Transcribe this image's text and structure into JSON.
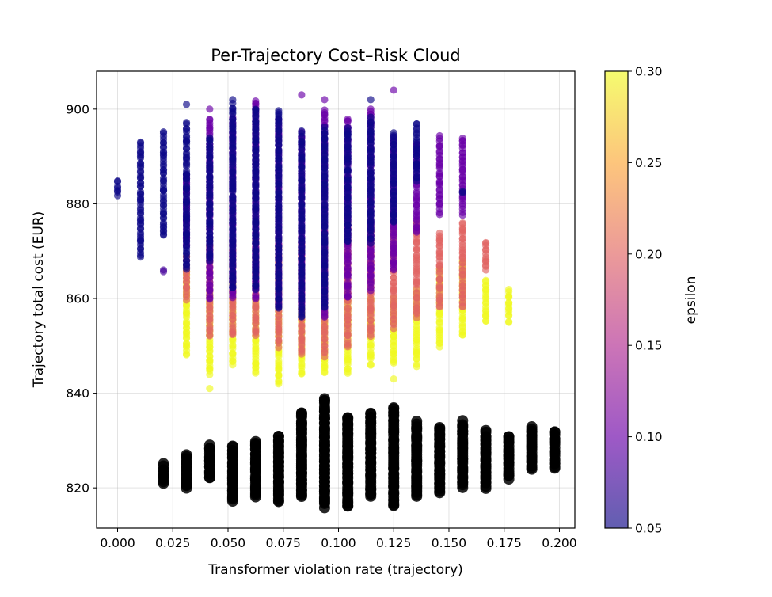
{
  "chart_data": {
    "type": "scatter",
    "title": "Per-Trajectory Cost–Risk Cloud",
    "xlabel": "Transformer violation rate (trajectory)",
    "ylabel": "Trajectory total cost (EUR)",
    "xlim": [
      -0.0095,
      0.207
    ],
    "ylim": [
      811.5,
      908
    ],
    "x_ticks": [
      0.0,
      0.025,
      0.05,
      0.075,
      0.1,
      0.125,
      0.15,
      0.175,
      0.2
    ],
    "x_tick_labels": [
      "0.000",
      "0.025",
      "0.050",
      "0.075",
      "0.100",
      "0.125",
      "0.150",
      "0.175",
      "0.200"
    ],
    "y_ticks": [
      820,
      840,
      860,
      880,
      900
    ],
    "y_tick_labels": [
      "820",
      "840",
      "860",
      "880",
      "900"
    ],
    "grid": true,
    "colormap": "plasma",
    "colorbar": {
      "label": "epsilon",
      "range": [
        0.05,
        0.3
      ],
      "ticks": [
        0.05,
        0.1,
        0.15,
        0.2,
        0.25,
        0.3
      ],
      "tick_labels": [
        "0.05",
        "0.10",
        "0.15",
        "0.20",
        "0.25",
        "0.30"
      ]
    },
    "series": [
      {
        "kind": "colored-by-epsilon",
        "marker_alpha": 0.65,
        "columns": [
          {
            "x": 0.0,
            "groups": [
              {
                "eps": 0.05,
                "min": 882,
                "max": 885
              }
            ]
          },
          {
            "x": 0.0104,
            "groups": [
              {
                "eps": 0.05,
                "min": 869,
                "max": 893
              }
            ]
          },
          {
            "x": 0.0208,
            "groups": [
              {
                "eps": 0.05,
                "min": 873,
                "max": 895
              },
              {
                "eps": 0.08,
                "min": 866,
                "max": 866
              }
            ]
          },
          {
            "x": 0.0312,
            "groups": [
              {
                "eps": 0.05,
                "min": 866,
                "max": 897
              },
              {
                "eps": 0.1,
                "min": 871,
                "max": 886
              },
              {
                "eps": 0.2,
                "min": 860,
                "max": 869
              },
              {
                "eps": 0.3,
                "min": 848,
                "max": 866
              }
            ],
            "outliers": [
              [
                0.05,
                901
              ]
            ]
          },
          {
            "x": 0.0417,
            "groups": [
              {
                "eps": 0.05,
                "min": 868,
                "max": 894
              },
              {
                "eps": 0.1,
                "min": 860,
                "max": 898
              },
              {
                "eps": 0.2,
                "min": 852,
                "max": 872
              },
              {
                "eps": 0.3,
                "min": 844,
                "max": 862
              }
            ],
            "outliers": [
              [
                0.3,
                841
              ],
              [
                0.1,
                900
              ]
            ]
          },
          {
            "x": 0.0521,
            "groups": [
              {
                "eps": 0.05,
                "min": 862,
                "max": 901
              },
              {
                "eps": 0.1,
                "min": 860,
                "max": 898
              },
              {
                "eps": 0.2,
                "min": 852,
                "max": 872
              },
              {
                "eps": 0.3,
                "min": 846,
                "max": 863
              }
            ],
            "outliers": [
              [
                0.05,
                902
              ]
            ]
          },
          {
            "x": 0.0625,
            "groups": [
              {
                "eps": 0.05,
                "min": 862,
                "max": 900
              },
              {
                "eps": 0.1,
                "min": 860,
                "max": 902
              },
              {
                "eps": 0.2,
                "min": 852,
                "max": 872
              },
              {
                "eps": 0.3,
                "min": 844,
                "max": 860
              }
            ]
          },
          {
            "x": 0.0729,
            "groups": [
              {
                "eps": 0.05,
                "min": 858,
                "max": 900
              },
              {
                "eps": 0.1,
                "min": 858,
                "max": 898
              },
              {
                "eps": 0.2,
                "min": 850,
                "max": 872
              },
              {
                "eps": 0.3,
                "min": 842,
                "max": 860
              }
            ]
          },
          {
            "x": 0.0833,
            "groups": [
              {
                "eps": 0.05,
                "min": 856,
                "max": 895
              },
              {
                "eps": 0.1,
                "min": 858,
                "max": 895
              },
              {
                "eps": 0.2,
                "min": 848,
                "max": 872
              },
              {
                "eps": 0.3,
                "min": 844,
                "max": 858
              }
            ],
            "outliers": [
              [
                0.1,
                903
              ]
            ]
          },
          {
            "x": 0.0937,
            "groups": [
              {
                "eps": 0.05,
                "min": 858,
                "max": 896
              },
              {
                "eps": 0.1,
                "min": 856,
                "max": 900
              },
              {
                "eps": 0.2,
                "min": 848,
                "max": 874
              },
              {
                "eps": 0.3,
                "min": 844,
                "max": 858
              }
            ],
            "outliers": [
              [
                0.1,
                902
              ]
            ]
          },
          {
            "x": 0.1042,
            "groups": [
              {
                "eps": 0.05,
                "min": 872,
                "max": 896
              },
              {
                "eps": 0.1,
                "min": 860,
                "max": 898
              },
              {
                "eps": 0.2,
                "min": 850,
                "max": 876
              },
              {
                "eps": 0.3,
                "min": 844,
                "max": 860
              }
            ]
          },
          {
            "x": 0.1146,
            "groups": [
              {
                "eps": 0.05,
                "min": 872,
                "max": 898
              },
              {
                "eps": 0.1,
                "min": 862,
                "max": 900
              },
              {
                "eps": 0.2,
                "min": 852,
                "max": 876
              },
              {
                "eps": 0.3,
                "min": 846,
                "max": 860
              }
            ],
            "outliers": [
              [
                0.05,
                902
              ]
            ]
          },
          {
            "x": 0.125,
            "groups": [
              {
                "eps": 0.05,
                "min": 876,
                "max": 895
              },
              {
                "eps": 0.1,
                "min": 866,
                "max": 894
              },
              {
                "eps": 0.2,
                "min": 854,
                "max": 878
              },
              {
                "eps": 0.3,
                "min": 846,
                "max": 860
              }
            ],
            "outliers": [
              [
                0.1,
                904
              ],
              [
                0.3,
                843
              ]
            ]
          },
          {
            "x": 0.1354,
            "groups": [
              {
                "eps": 0.05,
                "min": 885,
                "max": 897
              },
              {
                "eps": 0.1,
                "min": 874,
                "max": 893
              },
              {
                "eps": 0.2,
                "min": 856,
                "max": 876
              },
              {
                "eps": 0.3,
                "min": 846,
                "max": 862
              }
            ]
          },
          {
            "x": 0.1458,
            "groups": [
              {
                "eps": 0.1,
                "min": 878,
                "max": 894
              },
              {
                "eps": 0.2,
                "min": 858,
                "max": 874
              },
              {
                "eps": 0.3,
                "min": 850,
                "max": 866
              }
            ]
          },
          {
            "x": 0.1562,
            "groups": [
              {
                "eps": 0.05,
                "min": 882,
                "max": 883
              },
              {
                "eps": 0.1,
                "min": 878,
                "max": 894
              },
              {
                "eps": 0.2,
                "min": 858,
                "max": 876
              },
              {
                "eps": 0.3,
                "min": 852,
                "max": 868
              }
            ]
          },
          {
            "x": 0.1667,
            "groups": [
              {
                "eps": 0.2,
                "min": 866,
                "max": 872
              },
              {
                "eps": 0.3,
                "min": 855,
                "max": 864
              }
            ]
          },
          {
            "x": 0.1771,
            "groups": [
              {
                "eps": 0.3,
                "min": 855,
                "max": 862
              }
            ]
          }
        ]
      },
      {
        "kind": "baseline",
        "color": "#000000",
        "marker_alpha": 0.85,
        "columns": [
          {
            "x": 0.0208,
            "min": 821,
            "max": 825
          },
          {
            "x": 0.0312,
            "min": 820,
            "max": 827
          },
          {
            "x": 0.0417,
            "min": 822,
            "max": 829
          },
          {
            "x": 0.0521,
            "min": 817,
            "max": 829
          },
          {
            "x": 0.0625,
            "min": 818,
            "max": 830
          },
          {
            "x": 0.0729,
            "min": 817,
            "max": 831
          },
          {
            "x": 0.0833,
            "min": 818,
            "max": 836
          },
          {
            "x": 0.0937,
            "min": 816,
            "max": 839
          },
          {
            "x": 0.1042,
            "min": 816,
            "max": 835
          },
          {
            "x": 0.1146,
            "min": 818,
            "max": 836
          },
          {
            "x": 0.125,
            "min": 816,
            "max": 837
          },
          {
            "x": 0.1354,
            "min": 818,
            "max": 834
          },
          {
            "x": 0.1458,
            "min": 819,
            "max": 833
          },
          {
            "x": 0.1562,
            "min": 820,
            "max": 834
          },
          {
            "x": 0.1667,
            "min": 820,
            "max": 832
          },
          {
            "x": 0.1771,
            "min": 822,
            "max": 831
          },
          {
            "x": 0.1875,
            "min": 824,
            "max": 833
          },
          {
            "x": 0.1979,
            "min": 824,
            "max": 832
          }
        ]
      }
    ]
  }
}
